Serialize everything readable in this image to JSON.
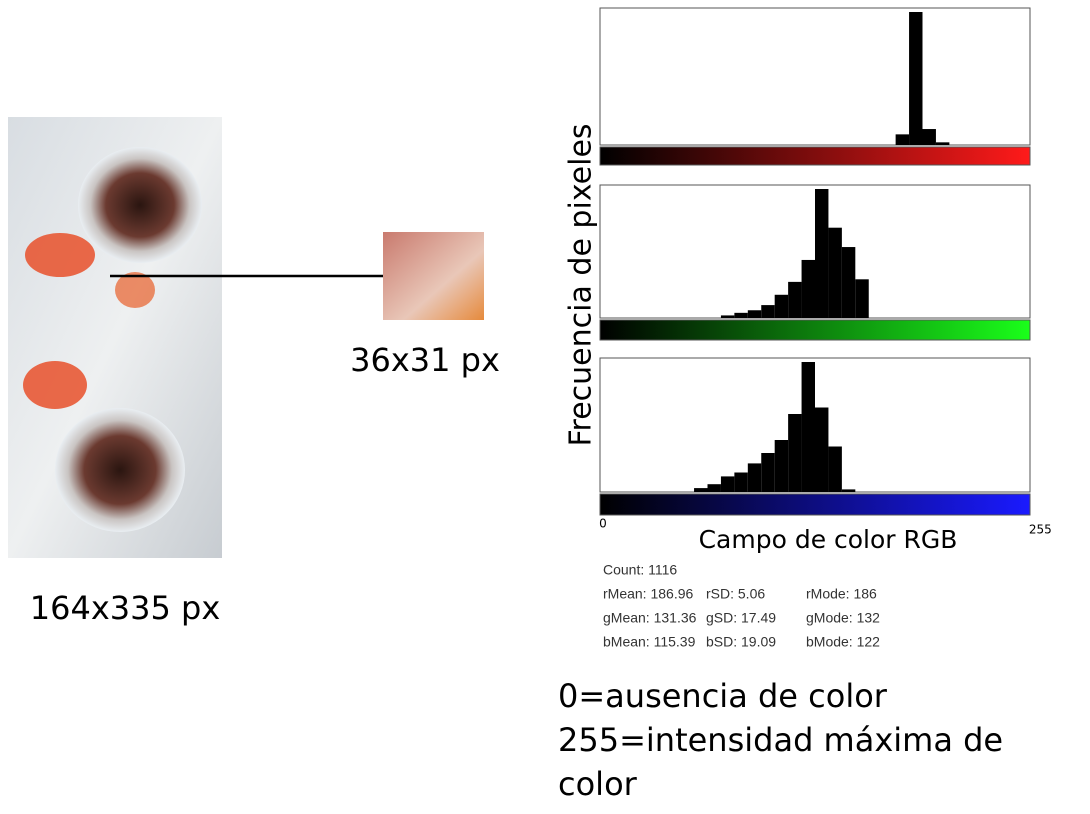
{
  "photo": {
    "label": "164x335 px"
  },
  "crop": {
    "label": "36x31 px"
  },
  "y_axis_label": "Frecuencia de pixeles",
  "x_axis": {
    "label": "Campo de color RGB",
    "ticks": [
      0,
      255
    ]
  },
  "chart_data": [
    {
      "type": "histogram",
      "color": "#000000",
      "scale_color": "#ff1a1a",
      "xlim": [
        0,
        256
      ],
      "ylim": [
        0,
        100
      ],
      "bins": [
        0,
        8,
        16,
        24,
        32,
        40,
        48,
        56,
        64,
        72,
        80,
        88,
        96,
        104,
        112,
        120,
        128,
        136,
        144,
        152,
        160,
        168,
        176,
        184,
        192,
        200,
        208,
        216,
        224,
        232,
        240,
        248,
        256
      ],
      "values": [
        0,
        0,
        0,
        0,
        0,
        0,
        0,
        0,
        0,
        0,
        0,
        0,
        0,
        0,
        0,
        0,
        0,
        0,
        0,
        0,
        0,
        0,
        8,
        100,
        12,
        2,
        0,
        0,
        0,
        0,
        0,
        0
      ]
    },
    {
      "type": "histogram",
      "color": "#000000",
      "scale_color": "#1aff1a",
      "xlim": [
        0,
        256
      ],
      "ylim": [
        0,
        100
      ],
      "bins": [
        0,
        8,
        16,
        24,
        32,
        40,
        48,
        56,
        64,
        72,
        80,
        88,
        96,
        104,
        112,
        120,
        128,
        136,
        144,
        152,
        160,
        168,
        176,
        184,
        192,
        200,
        208,
        216,
        224,
        232,
        240,
        248,
        256
      ],
      "values": [
        0,
        0,
        0,
        0,
        0,
        0,
        0,
        0,
        0,
        2,
        4,
        6,
        10,
        18,
        28,
        45,
        100,
        70,
        55,
        30,
        0,
        0,
        0,
        0,
        0,
        0,
        0,
        0,
        0,
        0,
        0,
        0
      ]
    },
    {
      "type": "histogram",
      "color": "#000000",
      "scale_color": "#1a1aff",
      "xlim": [
        0,
        256
      ],
      "ylim": [
        0,
        100
      ],
      "bins": [
        0,
        8,
        16,
        24,
        32,
        40,
        48,
        56,
        64,
        72,
        80,
        88,
        96,
        104,
        112,
        120,
        128,
        136,
        144,
        152,
        160,
        168,
        176,
        184,
        192,
        200,
        208,
        216,
        224,
        232,
        240,
        248,
        256
      ],
      "values": [
        0,
        0,
        0,
        0,
        0,
        0,
        0,
        3,
        6,
        12,
        15,
        22,
        30,
        40,
        60,
        100,
        65,
        35,
        2,
        0,
        0,
        0,
        0,
        0,
        0,
        0,
        0,
        0,
        0,
        0,
        0,
        0
      ]
    }
  ],
  "stats": {
    "count": "Count: 1116",
    "rows": [
      [
        "rMean: 186.96",
        "rSD: 5.06",
        "rMode: 186"
      ],
      [
        "gMean: 131.36",
        "gSD: 17.49",
        "gMode: 132"
      ],
      [
        "bMean: 115.39",
        "bSD: 19.09",
        "bMode: 122"
      ]
    ]
  },
  "notes": [
    "0=ausencia de color",
    "255=intensidad máxima de",
    "color"
  ]
}
